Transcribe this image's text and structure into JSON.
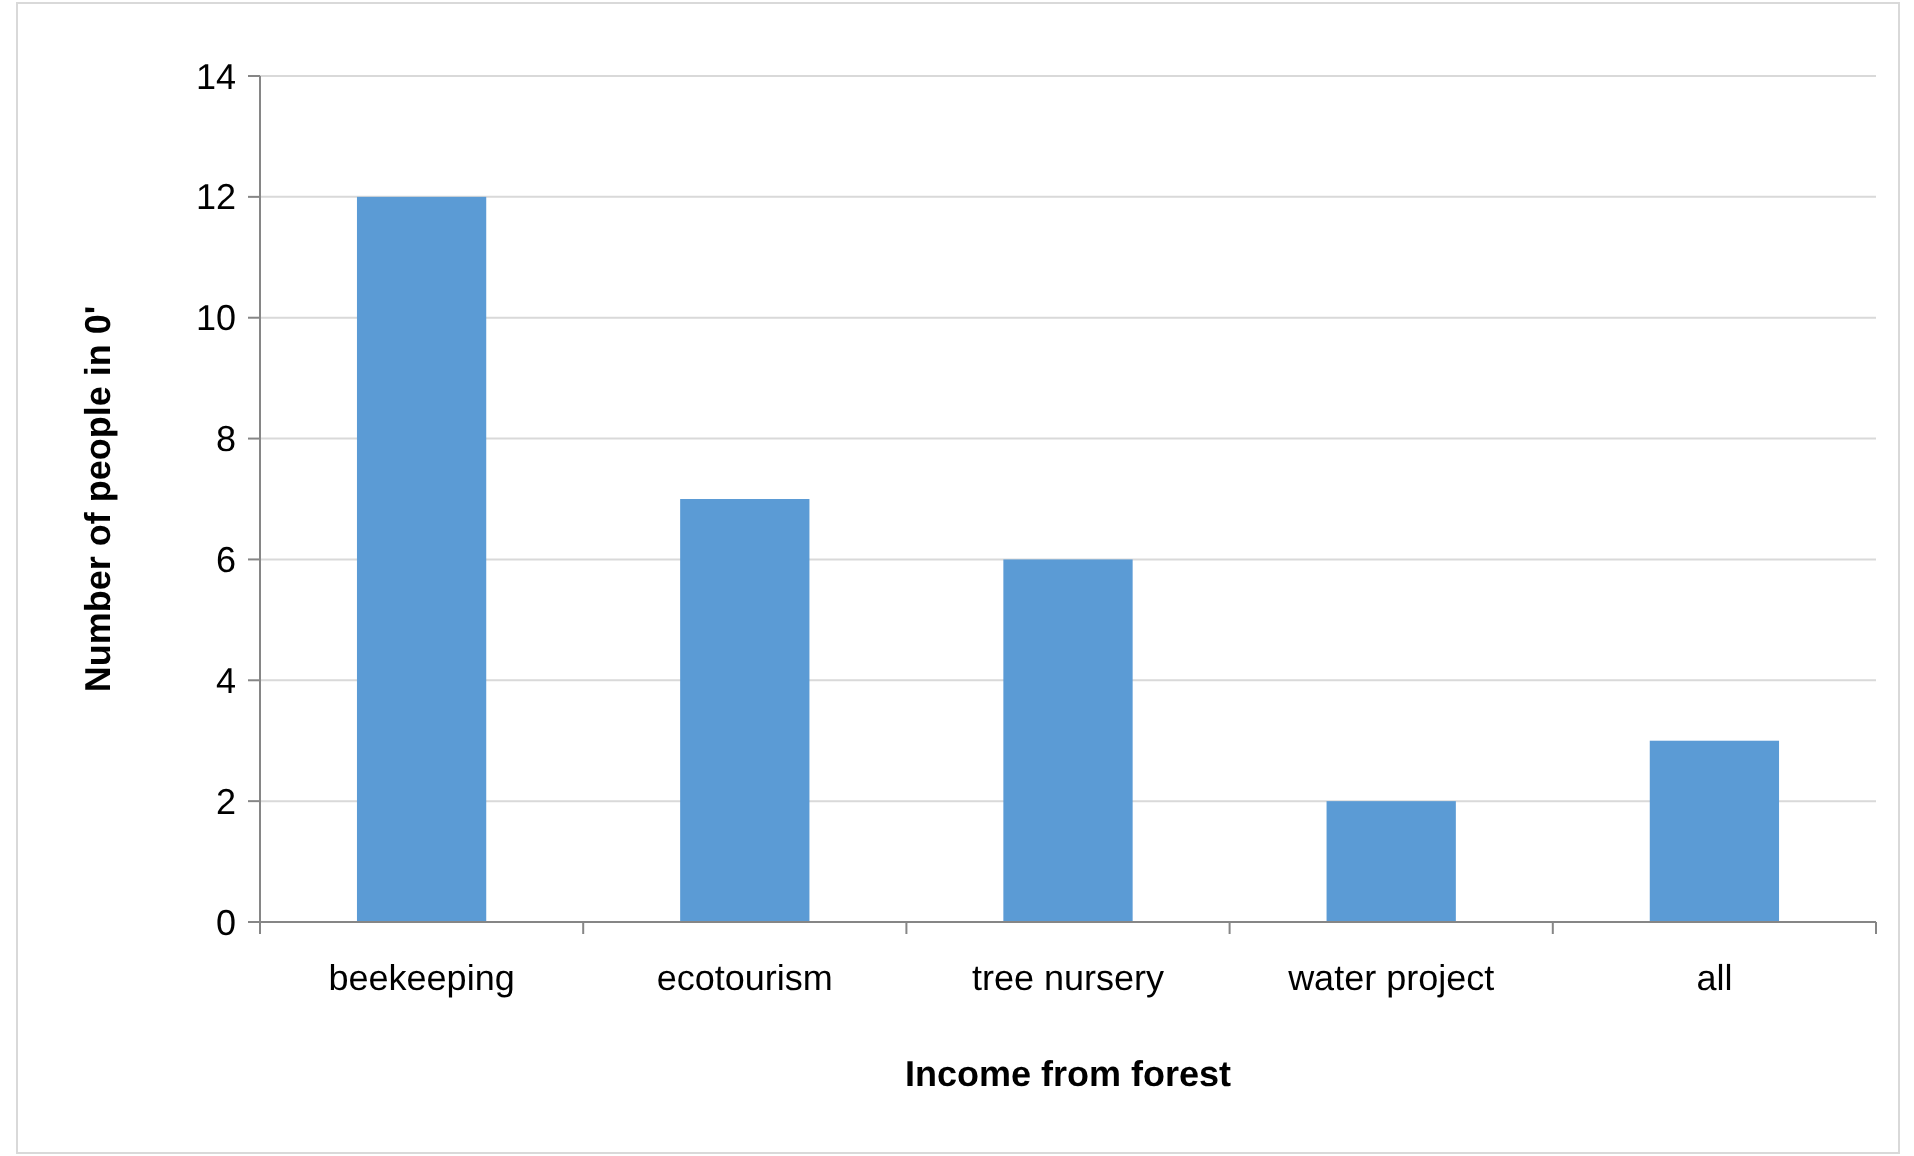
{
  "chart_data": {
    "type": "bar",
    "xlabel": "Income from forest",
    "ylabel": "Number of people in 0'",
    "categories": [
      "beekeeping",
      "ecotourism",
      "tree nursery",
      "water project",
      "all"
    ],
    "values": [
      12,
      7,
      6,
      2,
      3
    ],
    "color": "#5b9bd5",
    "ylim": [
      0,
      14
    ],
    "yticks": [
      0,
      2,
      4,
      6,
      8,
      10,
      12,
      14
    ],
    "grid": "y"
  }
}
